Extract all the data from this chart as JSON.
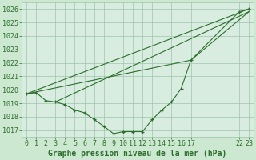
{
  "background_color": "#cce8d0",
  "plot_bg_color": "#d8ede0",
  "grid_color": "#9dc4ad",
  "line_color": "#2d6e2d",
  "ylim": [
    1016.5,
    1026.5
  ],
  "yticks": [
    1017,
    1018,
    1019,
    1020,
    1021,
    1022,
    1023,
    1024,
    1025,
    1026
  ],
  "xtick_positions": [
    0,
    1,
    2,
    3,
    4,
    5,
    6,
    7,
    8,
    9,
    10,
    11,
    12,
    13,
    14,
    15,
    16,
    17,
    22,
    23
  ],
  "xtick_labels": [
    "0",
    "1",
    "2",
    "3",
    "4",
    "5",
    "6",
    "7",
    "8",
    "9",
    "10",
    "11",
    "12",
    "13",
    "14",
    "15",
    "16",
    "17",
    "22",
    "23"
  ],
  "series1_x": [
    0,
    1,
    2,
    3,
    4,
    5,
    6,
    7,
    8,
    9,
    10,
    11,
    12,
    13,
    14,
    15,
    16,
    17,
    22,
    23
  ],
  "series1_y": [
    1019.7,
    1019.8,
    1019.2,
    1019.1,
    1018.9,
    1018.5,
    1018.3,
    1017.8,
    1017.3,
    1016.75,
    1016.9,
    1016.9,
    1016.9,
    1017.8,
    1018.5,
    1019.1,
    1020.1,
    1022.2,
    1025.8,
    1026.0
  ],
  "line2_x": [
    0,
    23
  ],
  "line2_y": [
    1019.7,
    1026.0
  ],
  "line3_x": [
    3,
    23
  ],
  "line3_y": [
    1019.1,
    1025.8
  ],
  "line4_x": [
    0,
    17,
    23
  ],
  "line4_y": [
    1019.7,
    1022.2,
    1025.8
  ],
  "font_color": "#2d6e2d",
  "font_size_ticks": 6.0,
  "font_size_xlabel": 7.0
}
